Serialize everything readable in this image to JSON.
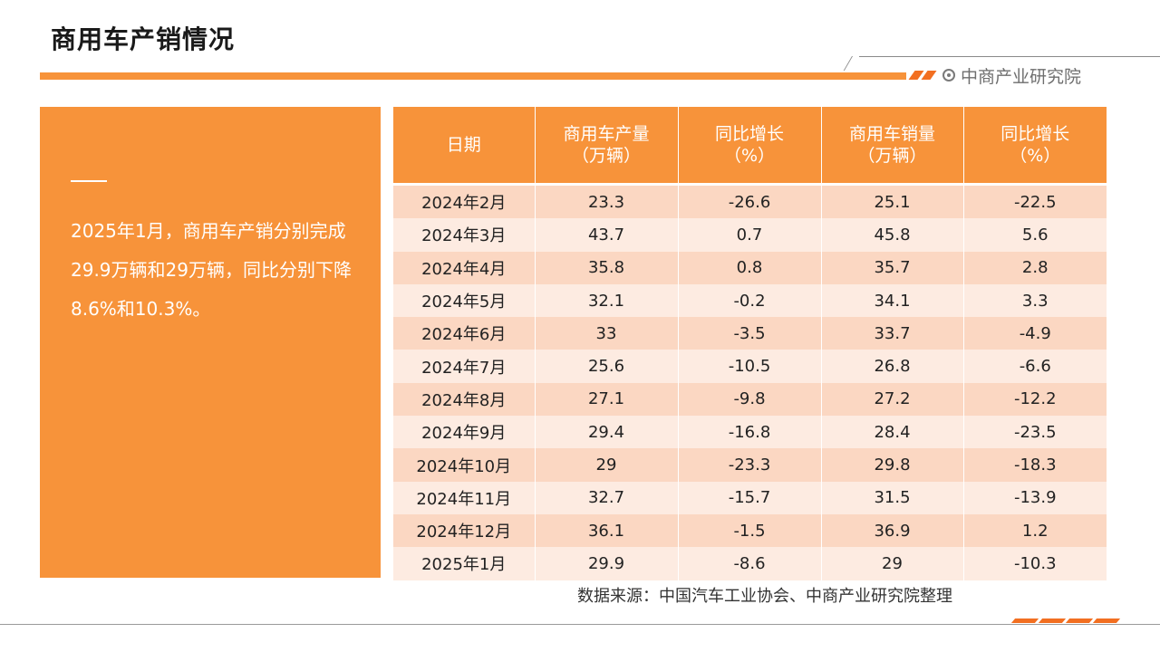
{
  "page": {
    "title": "商用车产销情况",
    "brand": "中商产业研究院"
  },
  "summary": {
    "text": "2025年1月，商用车产销分别完成29.9万辆和29万辆，同比分别下降8.6%和10.3%。"
  },
  "table": {
    "headers": [
      [
        "日期"
      ],
      [
        "商用车产量",
        "（万辆）"
      ],
      [
        "同比增长",
        "（%）"
      ],
      [
        "商用车销量",
        "（万辆）"
      ],
      [
        "同比增长",
        "（%）"
      ]
    ],
    "rows": [
      [
        "2024年2月",
        "23.3",
        "-26.6",
        "25.1",
        "-22.5"
      ],
      [
        "2024年3月",
        "43.7",
        "0.7",
        "45.8",
        "5.6"
      ],
      [
        "2024年4月",
        "35.8",
        "0.8",
        "35.7",
        "2.8"
      ],
      [
        "2024年5月",
        "32.1",
        "-0.2",
        "34.1",
        "3.3"
      ],
      [
        "2024年6月",
        "33",
        "-3.5",
        "33.7",
        "-4.9"
      ],
      [
        "2024年7月",
        "25.6",
        "-10.5",
        "26.8",
        "-6.6"
      ],
      [
        "2024年8月",
        "27.1",
        "-9.8",
        "27.2",
        "-12.2"
      ],
      [
        "2024年9月",
        "29.4",
        "-16.8",
        "28.4",
        "-23.5"
      ],
      [
        "2024年10月",
        "29",
        "-23.3",
        "29.8",
        "-18.3"
      ],
      [
        "2024年11月",
        "32.7",
        "-15.7",
        "31.5",
        "-13.9"
      ],
      [
        "2024年12月",
        "36.1",
        "-1.5",
        "36.9",
        "1.2"
      ],
      [
        "2025年1月",
        "29.9",
        "-8.6",
        "29",
        "-10.3"
      ]
    ]
  },
  "source": "数据来源：中国汽车工业协会、中商产业研究院整理",
  "colors": {
    "accent": "#f7933a",
    "row_odd": "#fbd7c2",
    "row_even": "#fdebe1"
  }
}
